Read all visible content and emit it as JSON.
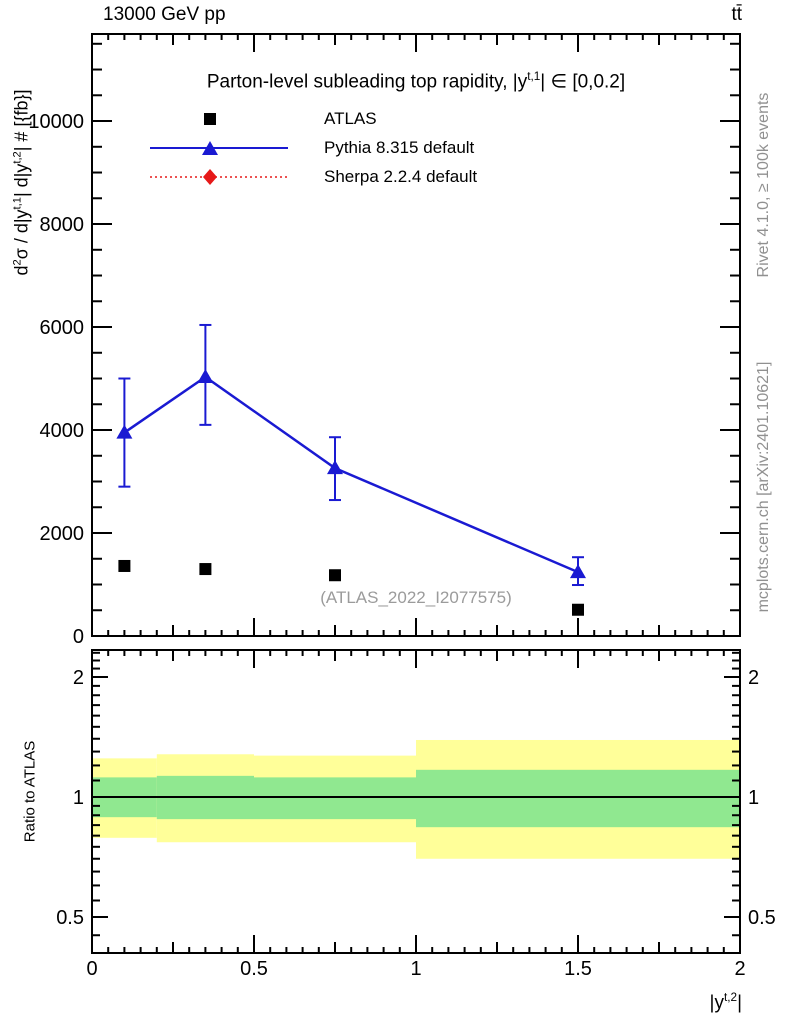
{
  "header": {
    "left": "13000 GeV pp",
    "right": "tt̄"
  },
  "main_panel": {
    "title": {
      "pre": "Parton-level subleading top rapidity, |y",
      "sup": "t,1",
      "post": "| ∈ [0,0.2]"
    },
    "ylabel": {
      "p1": "d",
      "s1": "2",
      "p2": "σ / d|y",
      "s2": "t,1",
      "p3": "| d|y",
      "s3": "t,2",
      "p4": "| # [{fb}]"
    },
    "legend": {
      "items": [
        {
          "label": "ATLAS",
          "marker": "square",
          "color": "#000000",
          "line": "none"
        },
        {
          "label": "Pythia 8.315 default",
          "marker": "triangle",
          "color": "#1a1ad2",
          "line": "solid"
        },
        {
          "label": "Sherpa 2.2.4 default",
          "marker": "diamond",
          "color": "#e61919",
          "line": "dotted"
        }
      ]
    }
  },
  "ratio_panel": {
    "ylabel": "Ratio to ATLAS",
    "xlabel": {
      "pre": "|y",
      "sup": "t,2",
      "post": "|"
    }
  },
  "watermarks": {
    "analysis": "(ATLAS_2022_I2077575)",
    "rivet": "Rivet 4.1.0, ≥ 100k events",
    "mcplots": "mcplots.cern.ch [arXiv:2401.10621]"
  },
  "chart_data": [
    {
      "type": "scatter",
      "panel": "main",
      "title": "Parton-level subleading top rapidity, |y^{t,1}| ∈ [0,0.2]",
      "xlabel": "|y^{t,2}|",
      "ylabel": "d²σ / d|y^{t,1}| d|y^{t,2}| # [{fb}]",
      "xlim": [
        0,
        2
      ],
      "ylim": [
        0,
        11690
      ],
      "xticks": [
        0,
        0.5,
        1,
        1.5,
        2
      ],
      "yticks": [
        0,
        2000,
        4000,
        6000,
        8000,
        10000
      ],
      "x_minor_step": 0.05,
      "x_medium_step": 0.25,
      "y_minor_step": 500,
      "grid": false,
      "legend_position": "top-left",
      "series": [
        {
          "name": "ATLAS",
          "marker": "square",
          "color": "#000000",
          "x": [
            0.1,
            0.35,
            0.75,
            1.5
          ],
          "y": [
            1360,
            1300,
            1180,
            510
          ]
        },
        {
          "name": "Pythia 8.315 default",
          "marker": "triangle",
          "color": "#1a1ad2",
          "line": "solid",
          "x": [
            0.1,
            0.35,
            0.75,
            1.5
          ],
          "y": [
            3950,
            5030,
            3260,
            1240
          ],
          "y_err_low": [
            2900,
            4100,
            2640,
            990
          ],
          "y_err_high": [
            5000,
            6040,
            3860,
            1530
          ]
        },
        {
          "name": "Sherpa 2.2.4 default",
          "marker": "diamond",
          "color": "#e61919",
          "line": "dotted",
          "x": [],
          "y": []
        }
      ]
    },
    {
      "type": "ratio-bands",
      "panel": "ratio",
      "ylabel": "Ratio to ATLAS",
      "yscale": "log2",
      "ylim": [
        0.406,
        2.34
      ],
      "yticks": [
        0.5,
        1,
        2
      ],
      "ytick_labels": [
        "0.5",
        "1",
        "2"
      ],
      "y_minor_ticks": [
        0.45,
        0.55,
        0.6,
        0.65,
        0.7,
        0.75,
        0.8,
        0.85,
        0.9,
        0.95,
        1.1,
        1.2,
        1.3,
        1.4,
        1.5,
        1.6,
        1.7,
        1.8,
        1.9,
        2.1,
        2.2,
        2.3
      ],
      "bin_edges": [
        0,
        0.2,
        0.5,
        1,
        2
      ],
      "bands": {
        "yellow": {
          "color": "#ffff99",
          "low": [
            0.79,
            0.77,
            0.77,
            0.7
          ],
          "high": [
            1.25,
            1.28,
            1.27,
            1.39
          ]
        },
        "green": {
          "color": "#90e890",
          "low": [
            0.89,
            0.88,
            0.88,
            0.84
          ],
          "high": [
            1.12,
            1.13,
            1.12,
            1.17
          ]
        }
      },
      "reference_line": 1
    }
  ]
}
